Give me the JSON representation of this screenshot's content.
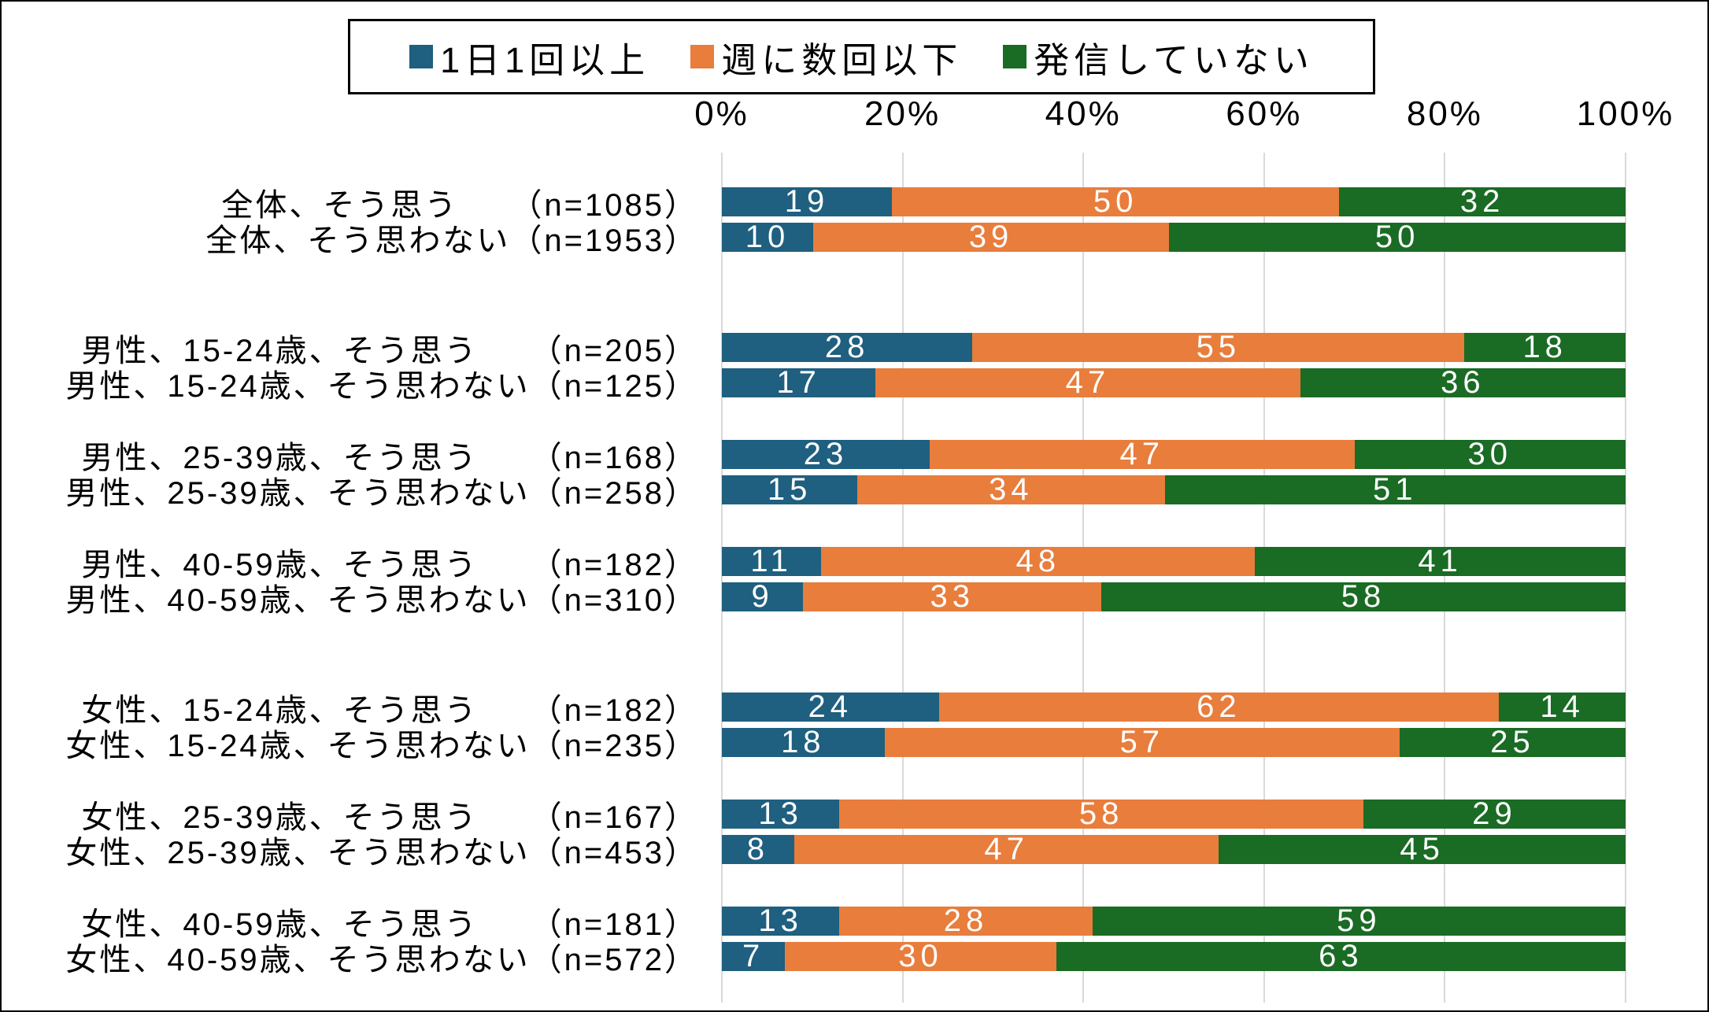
{
  "chart_data": {
    "type": "bar",
    "subtype": "horizontal-stacked-100pct",
    "title": "",
    "legend_position": "top",
    "legend": [
      {
        "name": "1日1回以上",
        "color": "#1F5F7F"
      },
      {
        "name": "週に数回以下",
        "color": "#E87D3C"
      },
      {
        "name": "発信していない",
        "color": "#1A6B24"
      }
    ],
    "x_axis": {
      "min": 0,
      "max": 100,
      "ticks": [
        "0%",
        "20%",
        "40%",
        "60%",
        "80%",
        "100%"
      ],
      "grid": true
    },
    "n_prefix": "（n=",
    "n_suffix": "）",
    "groups": [
      {
        "gap_before": "none",
        "rows": [
          {
            "label": "全体、そう思う　　",
            "n": 1085,
            "values": [
              19,
              50,
              32
            ]
          },
          {
            "label": "全体、そう思わない",
            "n": 1953,
            "values": [
              10,
              39,
              50
            ]
          }
        ]
      },
      {
        "gap_before": "large",
        "rows": [
          {
            "label": "男性、15-24歳、そう思う　　",
            "n": 205,
            "values": [
              28,
              55,
              18
            ]
          },
          {
            "label": "男性、15-24歳、そう思わない",
            "n": 125,
            "values": [
              17,
              47,
              36
            ]
          }
        ]
      },
      {
        "gap_before": "small",
        "rows": [
          {
            "label": "男性、25-39歳、そう思う　　",
            "n": 168,
            "values": [
              23,
              47,
              30
            ]
          },
          {
            "label": "男性、25-39歳、そう思わない",
            "n": 258,
            "values": [
              15,
              34,
              51
            ]
          }
        ]
      },
      {
        "gap_before": "small",
        "rows": [
          {
            "label": "男性、40-59歳、そう思う　　",
            "n": 182,
            "values": [
              11,
              48,
              41
            ]
          },
          {
            "label": "男性、40-59歳、そう思わない",
            "n": 310,
            "values": [
              9,
              33,
              58
            ]
          }
        ]
      },
      {
        "gap_before": "large",
        "rows": [
          {
            "label": "女性、15-24歳、そう思う　　",
            "n": 182,
            "values": [
              24,
              62,
              14
            ]
          },
          {
            "label": "女性、15-24歳、そう思わない",
            "n": 235,
            "values": [
              18,
              57,
              25
            ]
          }
        ]
      },
      {
        "gap_before": "small",
        "rows": [
          {
            "label": "女性、25-39歳、そう思う　　",
            "n": 167,
            "values": [
              13,
              58,
              29
            ]
          },
          {
            "label": "女性、25-39歳、そう思わない",
            "n": 453,
            "values": [
              8,
              47,
              45
            ]
          }
        ]
      },
      {
        "gap_before": "small",
        "rows": [
          {
            "label": "女性、40-59歳、そう思う　　",
            "n": 181,
            "values": [
              13,
              28,
              59
            ]
          },
          {
            "label": "女性、40-59歳、そう思わない",
            "n": 572,
            "values": [
              7,
              30,
              63
            ]
          }
        ]
      }
    ],
    "colors": {
      "grid": "#D9D9D9",
      "bar_value_text": "#FFFFFF",
      "text": "#000000",
      "frame": "#000000"
    }
  }
}
